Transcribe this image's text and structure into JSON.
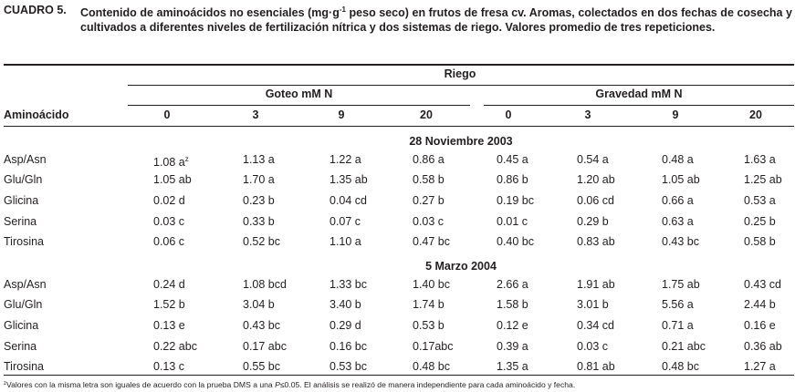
{
  "caption": {
    "label": "CUADRO 5.",
    "text_pre": "Contenido de aminoácidos no esenciales (mg·g",
    "text_sup": "-1",
    "text_post": " peso seco) en frutos de fresa cv. Aromas, colectados en dos fechas de cosecha y cultivados a diferentes niveles de fertilización nítrica y dos sistemas de riego. Valores promedio de tres repeticiones."
  },
  "header": {
    "stub": "Aminoácido",
    "riego": "Riego",
    "group1": "Goteo mM N",
    "group2": "Gravedad mM N",
    "levels": [
      "0",
      "3",
      "9",
      "20",
      "0",
      "3",
      "9",
      "20"
    ]
  },
  "sections": [
    {
      "title": "28 Noviembre 2003",
      "rows": [
        {
          "aa": "Asp/Asn",
          "vals": [
            "1.08 a",
            "1.13 a",
            "1.22 a",
            "0.86 a",
            "0.45 a",
            "0.54 a",
            "0.48 a",
            "1.63 a"
          ],
          "first_sup": "z"
        },
        {
          "aa": "Glu/Gln",
          "vals": [
            "1.05 ab",
            "1.70 a",
            "1.35 ab",
            "0.58 b",
            "0.86 b",
            "1.20 ab",
            "1.05 ab",
            "1.25 ab"
          ]
        },
        {
          "aa": "Glicina",
          "vals": [
            "0.02 d",
            "0.23 b",
            "0.04 cd",
            "0.27 b",
            "0.19 bc",
            "0.06 cd",
            "0.66 a",
            "0.53 a"
          ]
        },
        {
          "aa": "Serina",
          "vals": [
            "0.03 c",
            "0.33 b",
            "0.07 c",
            "0.03 c",
            "0.01 c",
            "0.29 b",
            "0.63 a",
            "0.25 b"
          ]
        },
        {
          "aa": "Tirosina",
          "vals": [
            "0.06 c",
            "0.52 bc",
            "1.10 a",
            "0.47 bc",
            "0.40 bc",
            "0.83 ab",
            "0.43 bc",
            "0.58 b"
          ]
        }
      ]
    },
    {
      "title": "5 Marzo 2004",
      "rows": [
        {
          "aa": "Asp/Asn",
          "vals": [
            "0.24 d",
            "1.08 bcd",
            "1.33 bc",
            "1.40 bc",
            "2.66 a",
            "1.91 ab",
            "1.75 ab",
            "0.43 cd"
          ]
        },
        {
          "aa": "Glu/Gln",
          "vals": [
            "1.52 b",
            "3.04 b",
            "3.40 b",
            "1.74 b",
            "1.58 b",
            "3.01 b",
            "5.56 a",
            "2.44 b"
          ]
        },
        {
          "aa": "Glicina",
          "vals": [
            "0.13 e",
            "0.43 bc",
            "0.29 d",
            "0.53 b",
            "0.12 e",
            "0.34 cd",
            "0.71 a",
            "0.16 e"
          ]
        },
        {
          "aa": "Serina",
          "vals": [
            "0.22 abc",
            "0.17 abc",
            "0.16 bc",
            "0.17abc",
            "0.39 a",
            "0.03 c",
            "0.21 abc",
            "0.36 ab"
          ]
        },
        {
          "aa": "Tirosina",
          "vals": [
            "0.13 c",
            "0.55 bc",
            "0.53 bc",
            "0.48 bc",
            "1.35 a",
            "0.81 ab",
            "0.48 bc",
            "1.27 a"
          ]
        }
      ]
    }
  ],
  "footnote": {
    "sup": "z",
    "text_a": "Valores con la misma letra son iguales de acuerdo con la prueba DMS a una ",
    "text_p": "P",
    "text_b": "≤0.05. El análisis se realizó de manera independiente para cada aminoácido y fecha."
  }
}
